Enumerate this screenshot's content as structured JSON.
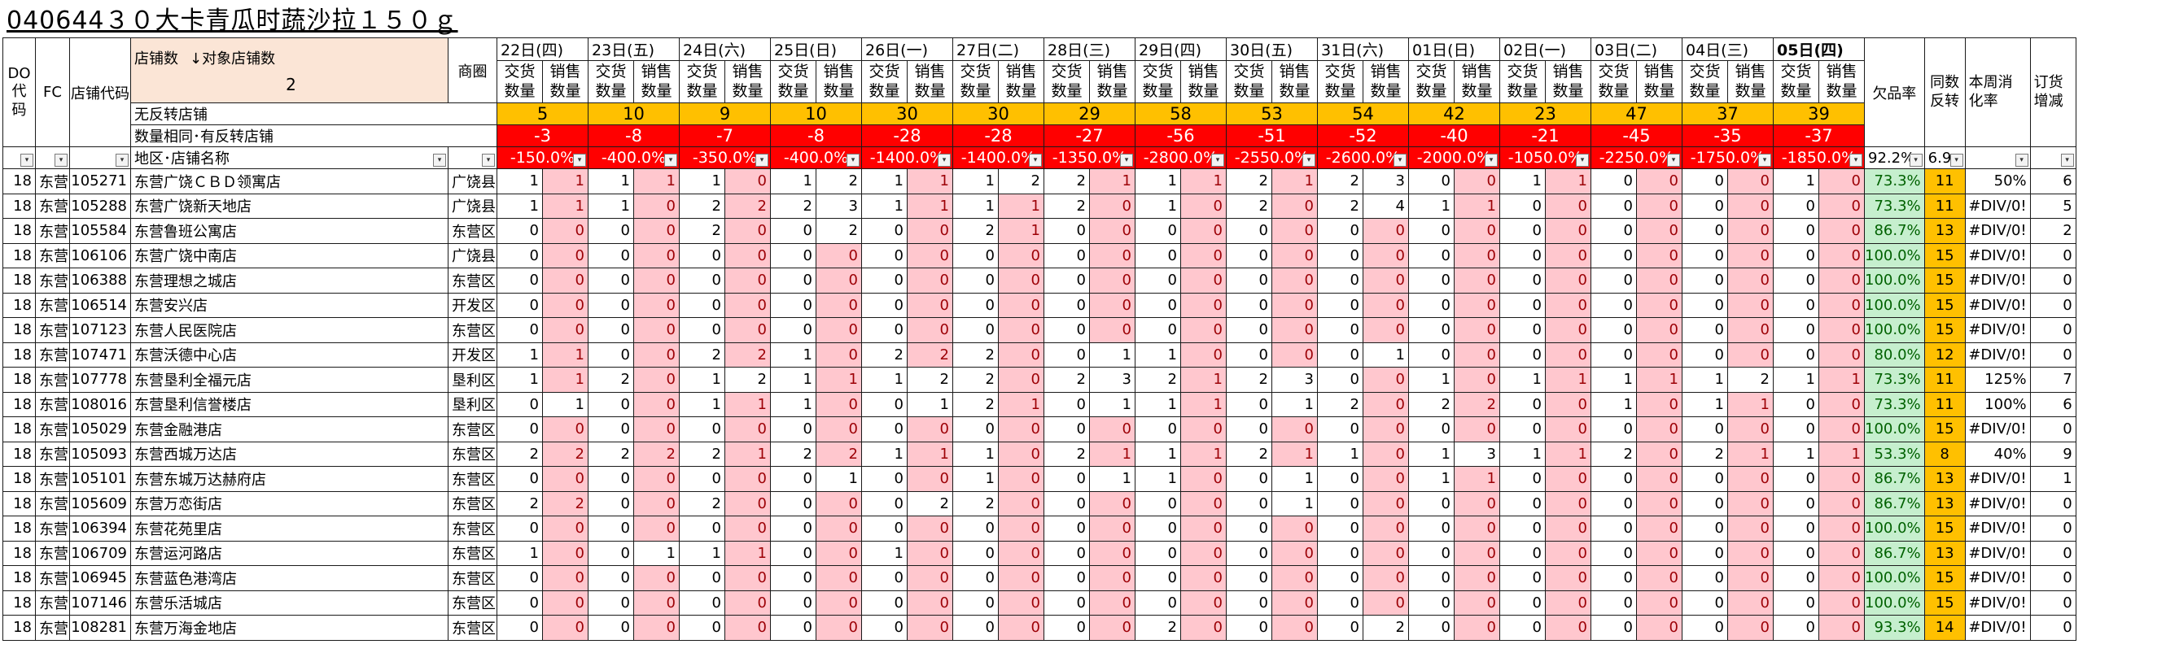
{
  "title": "040644３０大卡青瓜时蔬沙拉１５０ｇ",
  "headers": {
    "do_code": "DO代码",
    "fc": "FC",
    "shop_code": "店铺代码",
    "shop_count_label": "店铺数",
    "target_shop_label": "↓对象店铺数",
    "shop_count_value": "2",
    "area": "商圈",
    "no_reverse_label": "无反转店铺",
    "same_qty_label": "数量相同･有反转店铺",
    "region_shop_label": "地区･店铺名称",
    "deliver": "交货数量",
    "sales": "销售数量",
    "oos_rate": "欠品率",
    "reverse_count": "同数反转",
    "week_rate": "本周消化率",
    "order_change": "订货增减",
    "oos_summary": "92.2%",
    "reverse_summary": "6.9"
  },
  "dates": [
    {
      "label": "22日(四)",
      "no_reverse": "5",
      "same_qty": "-3",
      "pct": "-150.0%"
    },
    {
      "label": "23日(五)",
      "no_reverse": "10",
      "same_qty": "-8",
      "pct": "-400.0%"
    },
    {
      "label": "24日(六)",
      "no_reverse": "9",
      "same_qty": "-7",
      "pct": "-350.0%"
    },
    {
      "label": "25日(日)",
      "no_reverse": "10",
      "same_qty": "-8",
      "pct": "-400.0%"
    },
    {
      "label": "26日(一)",
      "no_reverse": "30",
      "same_qty": "-28",
      "pct": "-1400.0%"
    },
    {
      "label": "27日(二)",
      "no_reverse": "30",
      "same_qty": "-28",
      "pct": "-1400.0%"
    },
    {
      "label": "28日(三)",
      "no_reverse": "29",
      "same_qty": "-27",
      "pct": "-1350.0%"
    },
    {
      "label": "29日(四)",
      "no_reverse": "58",
      "same_qty": "-56",
      "pct": "-2800.0%"
    },
    {
      "label": "30日(五)",
      "no_reverse": "53",
      "same_qty": "-51",
      "pct": "-2550.0%"
    },
    {
      "label": "31日(六)",
      "no_reverse": "54",
      "same_qty": "-52",
      "pct": "-2600.0%"
    },
    {
      "label": "01日(日)",
      "no_reverse": "42",
      "same_qty": "-40",
      "pct": "-2000.0%"
    },
    {
      "label": "02日(一)",
      "no_reverse": "23",
      "same_qty": "-21",
      "pct": "-1050.0%"
    },
    {
      "label": "03日(二)",
      "no_reverse": "47",
      "same_qty": "-45",
      "pct": "-2250.0%"
    },
    {
      "label": "04日(三)",
      "no_reverse": "37",
      "same_qty": "-35",
      "pct": "-1750.0%"
    },
    {
      "label": "05日(四)",
      "no_reverse": "39",
      "same_qty": "-37",
      "pct": "-1850.0%",
      "bold": true
    }
  ],
  "rows": [
    {
      "do": "18",
      "fc": "东营",
      "code": "105271",
      "name": "东营广饶ＣＢＤ领寓店",
      "area": "广饶县",
      "vals": [
        1,
        1,
        1,
        1,
        1,
        0,
        1,
        2,
        1,
        1,
        1,
        2,
        2,
        1,
        1,
        1,
        2,
        1,
        2,
        3,
        0,
        0,
        1,
        1,
        0,
        0,
        0,
        0,
        1,
        0
      ],
      "oos": "73.3%",
      "rev": "11",
      "week": "50%",
      "chg": "6"
    },
    {
      "do": "18",
      "fc": "东营",
      "code": "105288",
      "name": "东营广饶新天地店",
      "area": "广饶县",
      "vals": [
        1,
        1,
        1,
        0,
        2,
        2,
        2,
        3,
        1,
        1,
        1,
        1,
        2,
        0,
        1,
        0,
        2,
        0,
        2,
        4,
        1,
        1,
        0,
        0,
        0,
        0,
        0,
        0,
        0,
        0
      ],
      "oos": "73.3%",
      "rev": "11",
      "week": "#DIV/0!",
      "chg": "5"
    },
    {
      "do": "18",
      "fc": "东营",
      "code": "105584",
      "name": "东营鲁班公寓店",
      "area": "东营区",
      "vals": [
        0,
        0,
        0,
        0,
        2,
        0,
        0,
        2,
        0,
        0,
        2,
        1,
        0,
        0,
        0,
        0,
        0,
        0,
        0,
        0,
        0,
        0,
        0,
        0,
        0,
        0,
        0,
        0,
        0,
        0
      ],
      "oos": "86.7%",
      "rev": "13",
      "week": "#DIV/0!",
      "chg": "2"
    },
    {
      "do": "18",
      "fc": "东营",
      "code": "106106",
      "name": "东营广饶中南店",
      "area": "广饶县",
      "vals": [
        0,
        0,
        0,
        0,
        0,
        0,
        0,
        0,
        0,
        0,
        0,
        0,
        0,
        0,
        0,
        0,
        0,
        0,
        0,
        0,
        0,
        0,
        0,
        0,
        0,
        0,
        0,
        0,
        0,
        0
      ],
      "oos": "100.0%",
      "rev": "15",
      "week": "#DIV/0!",
      "chg": "0"
    },
    {
      "do": "18",
      "fc": "东营",
      "code": "106388",
      "name": "东营理想之城店",
      "area": "东营区",
      "vals": [
        0,
        0,
        0,
        0,
        0,
        0,
        0,
        0,
        0,
        0,
        0,
        0,
        0,
        0,
        0,
        0,
        0,
        0,
        0,
        0,
        0,
        0,
        0,
        0,
        0,
        0,
        0,
        0,
        0,
        0
      ],
      "oos": "100.0%",
      "rev": "15",
      "week": "#DIV/0!",
      "chg": "0"
    },
    {
      "do": "18",
      "fc": "东营",
      "code": "106514",
      "name": "东营安兴店",
      "area": "开发区",
      "vals": [
        0,
        0,
        0,
        0,
        0,
        0,
        0,
        0,
        0,
        0,
        0,
        0,
        0,
        0,
        0,
        0,
        0,
        0,
        0,
        0,
        0,
        0,
        0,
        0,
        0,
        0,
        0,
        0,
        0,
        0
      ],
      "oos": "100.0%",
      "rev": "15",
      "week": "#DIV/0!",
      "chg": "0"
    },
    {
      "do": "18",
      "fc": "东营",
      "code": "107123",
      "name": "东营人民医院店",
      "area": "东营区",
      "vals": [
        0,
        0,
        0,
        0,
        0,
        0,
        0,
        0,
        0,
        0,
        0,
        0,
        0,
        0,
        0,
        0,
        0,
        0,
        0,
        0,
        0,
        0,
        0,
        0,
        0,
        0,
        0,
        0,
        0,
        0
      ],
      "oos": "100.0%",
      "rev": "15",
      "week": "#DIV/0!",
      "chg": "0"
    },
    {
      "do": "18",
      "fc": "东营",
      "code": "107471",
      "name": "东营沃德中心店",
      "area": "开发区",
      "vals": [
        1,
        1,
        0,
        0,
        2,
        2,
        1,
        0,
        2,
        2,
        2,
        0,
        0,
        1,
        1,
        0,
        0,
        0,
        0,
        1,
        0,
        0,
        0,
        0,
        0,
        0,
        0,
        0,
        0,
        0
      ],
      "oos": "80.0%",
      "rev": "12",
      "week": "#DIV/0!",
      "chg": "0"
    },
    {
      "do": "18",
      "fc": "东营",
      "code": "107778",
      "name": "东营垦利全福元店",
      "area": "垦利区",
      "vals": [
        1,
        1,
        2,
        0,
        1,
        2,
        1,
        1,
        1,
        2,
        2,
        0,
        2,
        3,
        2,
        1,
        2,
        3,
        0,
        0,
        1,
        0,
        1,
        1,
        1,
        1,
        1,
        2,
        1,
        1
      ],
      "oos": "73.3%",
      "rev": "11",
      "week": "125%",
      "chg": "7"
    },
    {
      "do": "18",
      "fc": "东营",
      "code": "108016",
      "name": "东营垦利信誉楼店",
      "area": "垦利区",
      "vals": [
        0,
        1,
        0,
        0,
        1,
        1,
        1,
        0,
        0,
        1,
        2,
        1,
        0,
        1,
        1,
        1,
        0,
        1,
        2,
        0,
        2,
        2,
        0,
        0,
        1,
        0,
        1,
        1,
        0,
        0
      ],
      "oos": "73.3%",
      "rev": "11",
      "week": "100%",
      "chg": "6"
    },
    {
      "do": "18",
      "fc": "东营",
      "code": "105029",
      "name": "东营金融港店",
      "area": "东营区",
      "vals": [
        0,
        0,
        0,
        0,
        0,
        0,
        0,
        0,
        0,
        0,
        0,
        0,
        0,
        0,
        0,
        0,
        0,
        0,
        0,
        0,
        0,
        0,
        0,
        0,
        0,
        0,
        0,
        0,
        0,
        0
      ],
      "oos": "100.0%",
      "rev": "15",
      "week": "#DIV/0!",
      "chg": "0"
    },
    {
      "do": "18",
      "fc": "东营",
      "code": "105093",
      "name": "东营西城万达店",
      "area": "东营区",
      "vals": [
        2,
        2,
        2,
        2,
        2,
        1,
        2,
        2,
        1,
        1,
        1,
        0,
        2,
        1,
        1,
        1,
        2,
        1,
        1,
        0,
        1,
        3,
        1,
        1,
        2,
        0,
        2,
        1,
        1,
        1
      ],
      "oos": "53.3%",
      "rev": "8",
      "week": "40%",
      "chg": "9"
    },
    {
      "do": "18",
      "fc": "东营",
      "code": "105101",
      "name": "东营东城万达赫府店",
      "area": "东营区",
      "vals": [
        0,
        0,
        0,
        0,
        0,
        0,
        0,
        1,
        0,
        0,
        1,
        0,
        0,
        1,
        1,
        0,
        0,
        1,
        0,
        0,
        1,
        1,
        0,
        0,
        0,
        0,
        0,
        0,
        0,
        0
      ],
      "oos": "86.7%",
      "rev": "13",
      "week": "#DIV/0!",
      "chg": "1"
    },
    {
      "do": "18",
      "fc": "东营",
      "code": "105609",
      "name": "东营万恋街店",
      "area": "东营区",
      "vals": [
        2,
        2,
        0,
        0,
        2,
        0,
        0,
        0,
        0,
        2,
        2,
        0,
        0,
        0,
        0,
        0,
        0,
        1,
        0,
        0,
        0,
        0,
        0,
        0,
        0,
        0,
        0,
        0,
        0,
        0
      ],
      "oos": "86.7%",
      "rev": "13",
      "week": "#DIV/0!",
      "chg": "0"
    },
    {
      "do": "18",
      "fc": "东营",
      "code": "106394",
      "name": "东营花苑里店",
      "area": "东营区",
      "vals": [
        0,
        0,
        0,
        0,
        0,
        0,
        0,
        0,
        0,
        0,
        0,
        0,
        0,
        0,
        0,
        0,
        0,
        0,
        0,
        0,
        0,
        0,
        0,
        0,
        0,
        0,
        0,
        0,
        0,
        0
      ],
      "oos": "100.0%",
      "rev": "15",
      "week": "#DIV/0!",
      "chg": "0"
    },
    {
      "do": "18",
      "fc": "东营",
      "code": "106709",
      "name": "东营运河路店",
      "area": "东营区",
      "vals": [
        1,
        0,
        0,
        1,
        1,
        1,
        0,
        0,
        1,
        0,
        0,
        0,
        0,
        0,
        0,
        0,
        0,
        0,
        0,
        0,
        0,
        0,
        0,
        0,
        0,
        0,
        0,
        0,
        0,
        0
      ],
      "oos": "86.7%",
      "rev": "13",
      "week": "#DIV/0!",
      "chg": "0"
    },
    {
      "do": "18",
      "fc": "东营",
      "code": "106945",
      "name": "东营蓝色港湾店",
      "area": "东营区",
      "vals": [
        0,
        0,
        0,
        0,
        0,
        0,
        0,
        0,
        0,
        0,
        0,
        0,
        0,
        0,
        0,
        0,
        0,
        0,
        0,
        0,
        0,
        0,
        0,
        0,
        0,
        0,
        0,
        0,
        0,
        0
      ],
      "oos": "100.0%",
      "rev": "15",
      "week": "#DIV/0!",
      "chg": "0"
    },
    {
      "do": "18",
      "fc": "东营",
      "code": "107146",
      "name": "东营乐活城店",
      "area": "东营区",
      "vals": [
        0,
        0,
        0,
        0,
        0,
        0,
        0,
        0,
        0,
        0,
        0,
        0,
        0,
        0,
        0,
        0,
        0,
        0,
        0,
        0,
        0,
        0,
        0,
        0,
        0,
        0,
        0,
        0,
        0,
        0
      ],
      "oos": "100.0%",
      "rev": "15",
      "week": "#DIV/0!",
      "chg": "0"
    },
    {
      "do": "18",
      "fc": "东营",
      "code": "108281",
      "name": "东营万海金地店",
      "area": "东营区",
      "vals": [
        0,
        0,
        0,
        0,
        0,
        0,
        0,
        0,
        0,
        0,
        0,
        0,
        0,
        0,
        2,
        0,
        0,
        0,
        0,
        2,
        0,
        0,
        0,
        0,
        0,
        0,
        0,
        0,
        0,
        0
      ],
      "oos": "93.3%",
      "rev": "14",
      "week": "#DIV/0!",
      "chg": "0"
    }
  ],
  "colors": {
    "orange": "#ffc000",
    "red": "#ff0000",
    "pink_fill": "#ffc7ce",
    "pink_text": "#9c0006",
    "green_fill": "#c6efce",
    "green_text": "#006100",
    "peach": "#fbe5d6"
  }
}
